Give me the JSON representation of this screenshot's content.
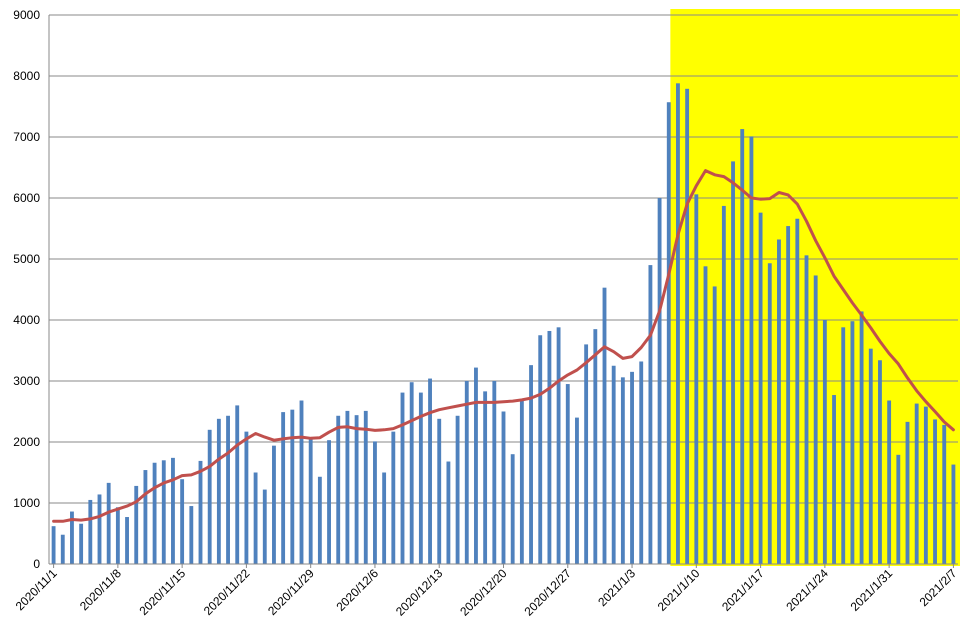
{
  "chart_data": {
    "type": "bar",
    "title": "",
    "xlabel": "",
    "ylabel": "",
    "ylim": [
      0,
      9000
    ],
    "yticks": [
      0,
      1000,
      2000,
      3000,
      4000,
      5000,
      6000,
      7000,
      8000,
      9000
    ],
    "ytick_labels": [
      "0",
      "1000",
      "2000",
      "3000",
      "4000",
      "5000",
      "6000",
      "7000",
      "8000",
      "9000"
    ],
    "grid": true,
    "legend": "none",
    "x_start": "2020/11/1",
    "x_tick_labels": [
      "2020/11/1",
      "2020/11/8",
      "2020/11/15",
      "2020/11/22",
      "2020/11/29",
      "2020/12/6",
      "2020/12/13",
      "2020/12/20",
      "2020/12/27",
      "2021/1/3",
      "2021/1/10",
      "2021/1/17",
      "2021/1/24",
      "2021/1/31",
      "2021/2/7"
    ],
    "highlight": {
      "from": "2021/1/8",
      "to": "2021/2/7",
      "color": "#ffff00"
    },
    "series": [
      {
        "kind": "bar",
        "color": "#4f81bd",
        "values": [
          620,
          480,
          860,
          660,
          1050,
          1140,
          1330,
          930,
          770,
          1280,
          1540,
          1660,
          1700,
          1740,
          1390,
          950,
          1690,
          2200,
          2380,
          2430,
          2600,
          2170,
          1500,
          1220,
          1940,
          2490,
          2530,
          2680,
          2050,
          1430,
          2030,
          2430,
          2510,
          2440,
          2510,
          2010,
          1500,
          2170,
          2810,
          2980,
          2810,
          3040,
          2380,
          1680,
          2430,
          3000,
          3220,
          2830,
          3000,
          2500,
          1800,
          2700,
          3260,
          3750,
          3820,
          3880,
          2950,
          2400,
          3600,
          3850,
          4530,
          3250,
          3060,
          3150,
          3320,
          4900,
          6000,
          7570,
          7880,
          7790,
          6060,
          4880,
          4550,
          5870,
          6600,
          7130,
          7010,
          5760,
          4930,
          5320,
          5540,
          5660,
          5060,
          4730,
          4000,
          2770,
          3880,
          3980,
          4140,
          3530,
          3340,
          2680,
          1790,
          2330,
          2630,
          2580,
          2370,
          2280,
          1630
        ]
      },
      {
        "kind": "line",
        "color": "#c0504d",
        "values": [
          700,
          700,
          730,
          720,
          740,
          780,
          850,
          900,
          950,
          1020,
          1150,
          1250,
          1330,
          1380,
          1450,
          1460,
          1520,
          1600,
          1720,
          1820,
          1950,
          2050,
          2140,
          2080,
          2030,
          2050,
          2070,
          2080,
          2060,
          2070,
          2160,
          2240,
          2250,
          2220,
          2210,
          2190,
          2200,
          2220,
          2280,
          2350,
          2420,
          2480,
          2530,
          2560,
          2590,
          2620,
          2650,
          2650,
          2650,
          2660,
          2670,
          2690,
          2720,
          2780,
          2880,
          3000,
          3100,
          3180,
          3300,
          3430,
          3560,
          3480,
          3370,
          3400,
          3550,
          3750,
          4150,
          4750,
          5400,
          5900,
          6200,
          6450,
          6380,
          6350,
          6250,
          6130,
          6000,
          5980,
          5990,
          6090,
          6050,
          5900,
          5620,
          5300,
          5020,
          4720,
          4500,
          4280,
          4080,
          3870,
          3650,
          3450,
          3280,
          3050,
          2840,
          2660,
          2500,
          2330,
          2200
        ]
      }
    ]
  }
}
